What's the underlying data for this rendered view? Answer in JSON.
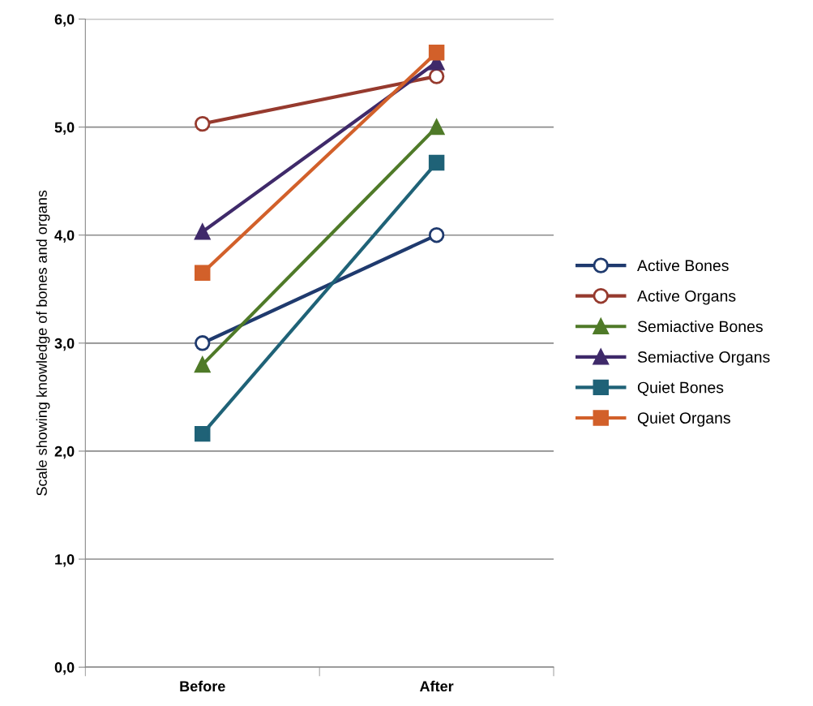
{
  "chart_data": {
    "type": "line",
    "ylabel": "Scale showing knowledge of bones and organs",
    "categories": [
      "Before",
      "After"
    ],
    "series": [
      {
        "name": "Active Bones",
        "color": "#1f3a6e",
        "marker": "circle",
        "values": [
          3.0,
          4.0
        ]
      },
      {
        "name": "Active Organs",
        "color": "#963a2e",
        "marker": "circle",
        "values": [
          5.03,
          5.47
        ]
      },
      {
        "name": "Semiactive Bones",
        "color": "#4f7a28",
        "marker": "triangle",
        "values": [
          2.8,
          5.0
        ]
      },
      {
        "name": "Semiactive Organs",
        "color": "#3f2a6a",
        "marker": "triangle",
        "values": [
          4.03,
          5.6
        ]
      },
      {
        "name": "Quiet Bones",
        "color": "#1f6277",
        "marker": "square",
        "values": [
          2.16,
          4.67
        ]
      },
      {
        "name": "Quiet Organs",
        "color": "#d2602a",
        "marker": "square",
        "values": [
          3.65,
          5.69
        ]
      }
    ],
    "ylim": [
      0,
      6
    ],
    "yticks": [
      {
        "value": 0,
        "label": "0,0"
      },
      {
        "value": 1,
        "label": "1,0"
      },
      {
        "value": 2,
        "label": "2,0"
      },
      {
        "value": 3,
        "label": "3,0"
      },
      {
        "value": 4,
        "label": "4,0"
      },
      {
        "value": 5,
        "label": "5,0"
      },
      {
        "value": 6,
        "label": "6,0"
      }
    ],
    "grid": "y",
    "legend": "right",
    "line_style": "solid"
  }
}
